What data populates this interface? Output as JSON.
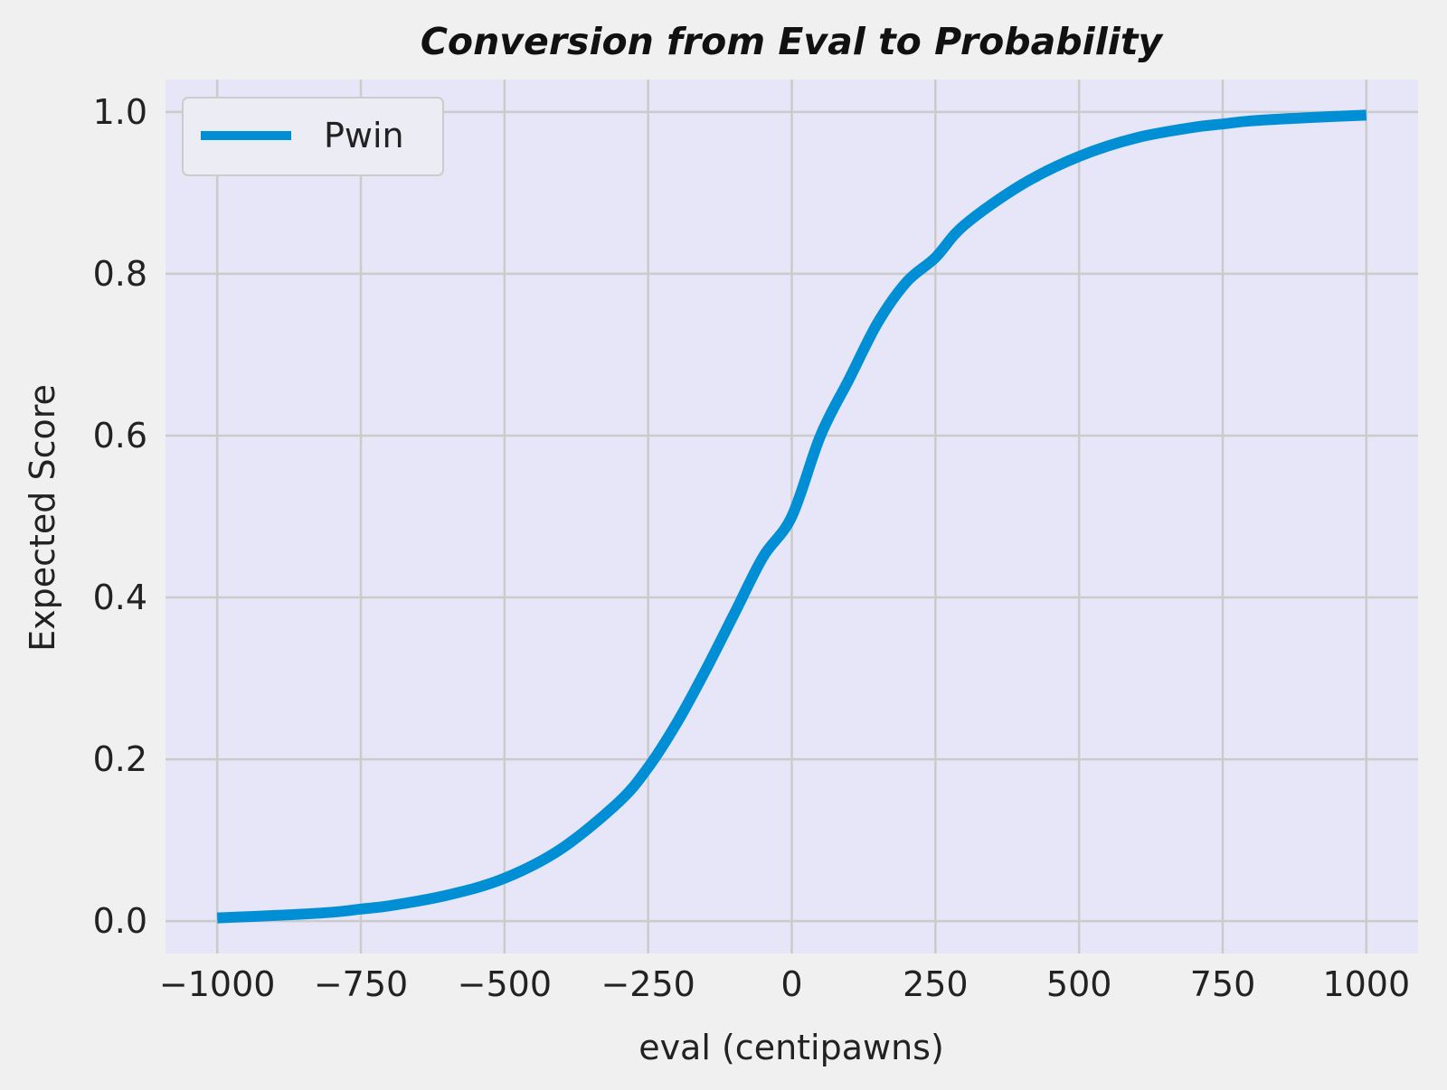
{
  "chart_data": {
    "type": "line",
    "title": "Conversion from Eval to Probability",
    "xlabel": "eval (centipawns)",
    "ylabel": "Expected Score",
    "xlim": [
      -1090,
      1090
    ],
    "ylim": [
      -0.04,
      1.04
    ],
    "xticks": [
      -1000,
      -750,
      -500,
      -250,
      0,
      250,
      500,
      750,
      1000
    ],
    "xtick_labels": [
      "−1000",
      "−750",
      "−500",
      "−250",
      "0",
      "250",
      "500",
      "750",
      "1000"
    ],
    "yticks": [
      0.0,
      0.2,
      0.4,
      0.6,
      0.8,
      1.0
    ],
    "ytick_labels": [
      "0.0",
      "0.2",
      "0.4",
      "0.6",
      "0.8",
      "1.0"
    ],
    "grid": true,
    "legend": {
      "position": "top-left"
    },
    "series": [
      {
        "name": "Pwin",
        "color": "#008fd5",
        "x": [
          -1000,
          -900,
          -800,
          -750,
          -700,
          -600,
          -500,
          -400,
          -300,
          -250,
          -200,
          -150,
          -100,
          -50,
          0,
          50,
          100,
          150,
          200,
          250,
          300,
          400,
          500,
          600,
          700,
          750,
          800,
          900,
          1000
        ],
        "y": [
          0.004,
          0.007,
          0.011,
          0.015,
          0.019,
          0.032,
          0.053,
          0.09,
          0.148,
          0.19,
          0.245,
          0.31,
          0.38,
          0.45,
          0.5,
          0.6,
          0.67,
          0.74,
          0.79,
          0.82,
          0.86,
          0.91,
          0.945,
          0.968,
          0.981,
          0.985,
          0.989,
          0.993,
          0.996
        ]
      }
    ]
  },
  "colors": {
    "figure_bg": "#f0f0f0",
    "plot_bg": "#e6e6f8",
    "grid": "#cbcbcb",
    "line": "#008fd5"
  }
}
